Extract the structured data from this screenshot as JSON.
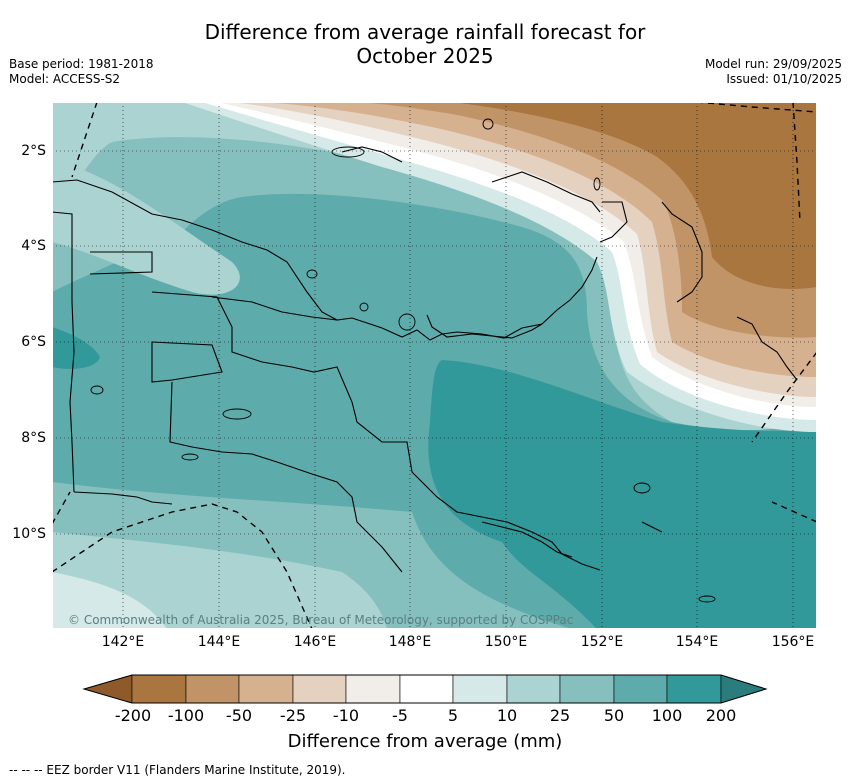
{
  "title": {
    "line1": "Difference from average rainfall forecast for",
    "line2": "October 2025"
  },
  "meta": {
    "base_period": "Base period: 1981-2018",
    "model": "Model: ACCESS-S2",
    "model_run": "Model run: 29/09/2025",
    "issued": "Issued: 01/10/2025"
  },
  "axes": {
    "x_ticks": [
      "142°E",
      "144°E",
      "146°E",
      "148°E",
      "150°E",
      "152°E",
      "154°E",
      "156°E"
    ],
    "y_ticks": [
      "2°S",
      "4°S",
      "6°S",
      "8°S",
      "10°S"
    ]
  },
  "credit": "© Commonwealth of Australia 2025, Bureau of Meteorology, supported by COSPPac",
  "colorbar": {
    "title": "Difference from average (mm)",
    "labels": [
      "-200",
      "-100",
      "-50",
      "-25",
      "-10",
      "-5",
      "5",
      "10",
      "25",
      "50",
      "100",
      "200"
    ],
    "colors": [
      "#8f5a2a",
      "#a97640",
      "#c19468",
      "#d5b18f",
      "#e5d1bf",
      "#f1ede8",
      "#ffffff",
      "#d4e9e8",
      "#abd3d2",
      "#85c0bf",
      "#5eabab",
      "#32999a",
      "#2b7c7c"
    ]
  },
  "footer": "-- -- -- EEZ border V11 (Flanders Marine Institute, 2019)."
}
